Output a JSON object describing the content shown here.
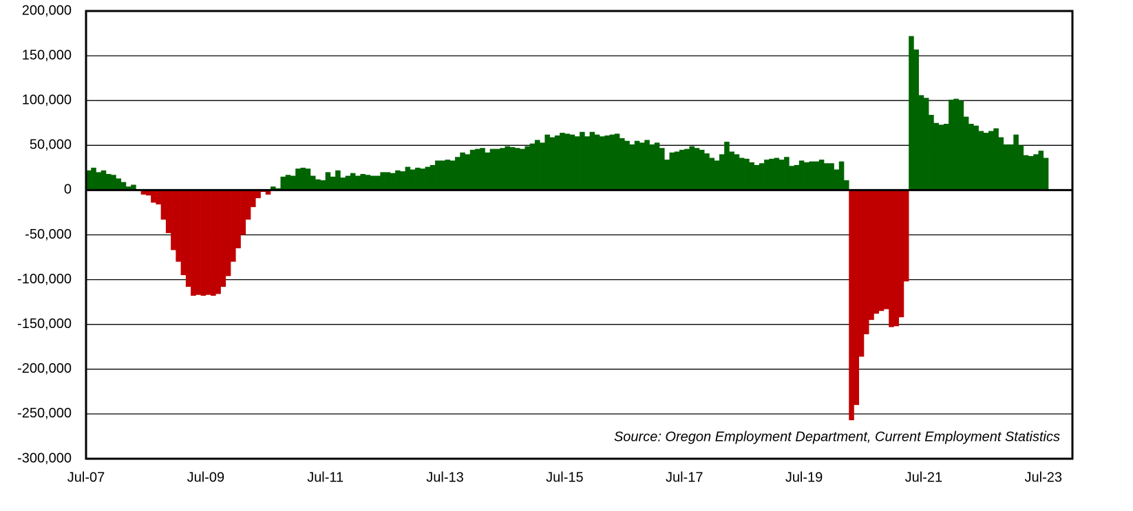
{
  "chart_data": {
    "type": "bar",
    "annotation": "Source: Oregon Employment Department, Current Employment Statistics",
    "categories": [
      "Jul-07",
      null,
      null,
      null,
      null,
      null,
      null,
      null,
      null,
      null,
      null,
      null,
      null,
      null,
      null,
      null,
      null,
      null,
      null,
      null,
      null,
      null,
      null,
      null,
      "Jul-09",
      null,
      null,
      null,
      null,
      null,
      null,
      null,
      null,
      null,
      null,
      null,
      null,
      null,
      null,
      null,
      null,
      null,
      null,
      null,
      null,
      null,
      null,
      null,
      "Jul-11",
      null,
      null,
      null,
      null,
      null,
      null,
      null,
      null,
      null,
      null,
      null,
      null,
      null,
      null,
      null,
      null,
      null,
      null,
      null,
      null,
      null,
      null,
      null,
      "Jul-13",
      null,
      null,
      null,
      null,
      null,
      null,
      null,
      null,
      null,
      null,
      null,
      null,
      null,
      null,
      null,
      null,
      null,
      null,
      null,
      null,
      null,
      null,
      null,
      "Jul-15",
      null,
      null,
      null,
      null,
      null,
      null,
      null,
      null,
      null,
      null,
      null,
      null,
      null,
      null,
      null,
      null,
      null,
      null,
      null,
      null,
      null,
      null,
      null,
      "Jul-17",
      null,
      null,
      null,
      null,
      null,
      null,
      null,
      null,
      null,
      null,
      null,
      null,
      null,
      null,
      null,
      null,
      null,
      null,
      null,
      null,
      null,
      null,
      null,
      "Jul-19",
      null,
      null,
      null,
      null,
      null,
      null,
      null,
      null,
      null,
      null,
      null,
      null,
      null,
      null,
      null,
      null,
      null,
      null,
      null,
      null,
      null,
      null,
      null,
      "Jul-21",
      null,
      null,
      null,
      null,
      null,
      null,
      null,
      null,
      null,
      null,
      null,
      null,
      null,
      null,
      null,
      null,
      null,
      null,
      null,
      null,
      null,
      null,
      null,
      "Jul-23"
    ],
    "values": [
      22000,
      25000,
      20000,
      22000,
      18000,
      17000,
      13000,
      9000,
      4000,
      6000,
      -1000,
      -5000,
      -6000,
      -14000,
      -16000,
      -33000,
      -48000,
      -67000,
      -80000,
      -95000,
      -108000,
      -118000,
      -117000,
      -118000,
      -117000,
      -118000,
      -116000,
      -108000,
      -96000,
      -80000,
      -65000,
      -50000,
      -33000,
      -19000,
      -9000,
      -2000,
      -5000,
      4000,
      2000,
      15000,
      17000,
      16000,
      24000,
      25000,
      24000,
      16000,
      12000,
      11000,
      20000,
      15000,
      22000,
      14000,
      16000,
      19000,
      16000,
      18000,
      17000,
      16000,
      16000,
      20000,
      20000,
      19000,
      22000,
      21000,
      26000,
      23000,
      25000,
      24000,
      26000,
      28000,
      33000,
      33000,
      34000,
      33000,
      37000,
      42000,
      40000,
      45000,
      46000,
      47000,
      42000,
      46000,
      46000,
      47000,
      49000,
      48000,
      47000,
      46000,
      49000,
      52000,
      56000,
      53000,
      62000,
      59000,
      61000,
      64000,
      63000,
      62000,
      60000,
      65000,
      60000,
      65000,
      62000,
      60000,
      61000,
      62000,
      63000,
      58000,
      55000,
      51000,
      55000,
      53000,
      56000,
      51000,
      53000,
      47000,
      34000,
      42000,
      43000,
      45000,
      46000,
      49000,
      47000,
      45000,
      41000,
      36000,
      33000,
      40000,
      54000,
      43000,
      40000,
      36000,
      35000,
      31000,
      28000,
      30000,
      34000,
      35000,
      36000,
      34000,
      37000,
      27000,
      28000,
      33000,
      31000,
      32000,
      32000,
      34000,
      30000,
      30000,
      23000,
      32000,
      11000,
      -257000,
      -240000,
      -186000,
      -161000,
      -145000,
      -138000,
      -135000,
      -133000,
      -153000,
      -152000,
      -142000,
      -102000,
      172000,
      157000,
      106000,
      103000,
      84000,
      75000,
      73000,
      74000,
      101000,
      102000,
      100000,
      82000,
      74000,
      72000,
      66000,
      64000,
      66000,
      69000,
      59000,
      51000,
      51000,
      62000,
      50000,
      39000,
      38000,
      40000,
      44000,
      36000
    ],
    "positive_color": "#006400",
    "negative_color": "#c00000",
    "ylim": [
      -300000,
      200000
    ],
    "yticks": [
      {
        "value": -300000,
        "label": "-300,000"
      },
      {
        "value": -250000,
        "label": "-250,000"
      },
      {
        "value": -200000,
        "label": "-200,000"
      },
      {
        "value": -150000,
        "label": "-150,000"
      },
      {
        "value": -100000,
        "label": "-100,000"
      },
      {
        "value": -50000,
        "label": "-50,000"
      },
      0,
      {
        "value": 50000,
        "label": "50,000"
      },
      {
        "value": 100000,
        "label": "100,000"
      },
      {
        "value": 150000,
        "label": "150,000"
      },
      {
        "value": 200000,
        "label": "200,000"
      }
    ],
    "grid": true
  }
}
